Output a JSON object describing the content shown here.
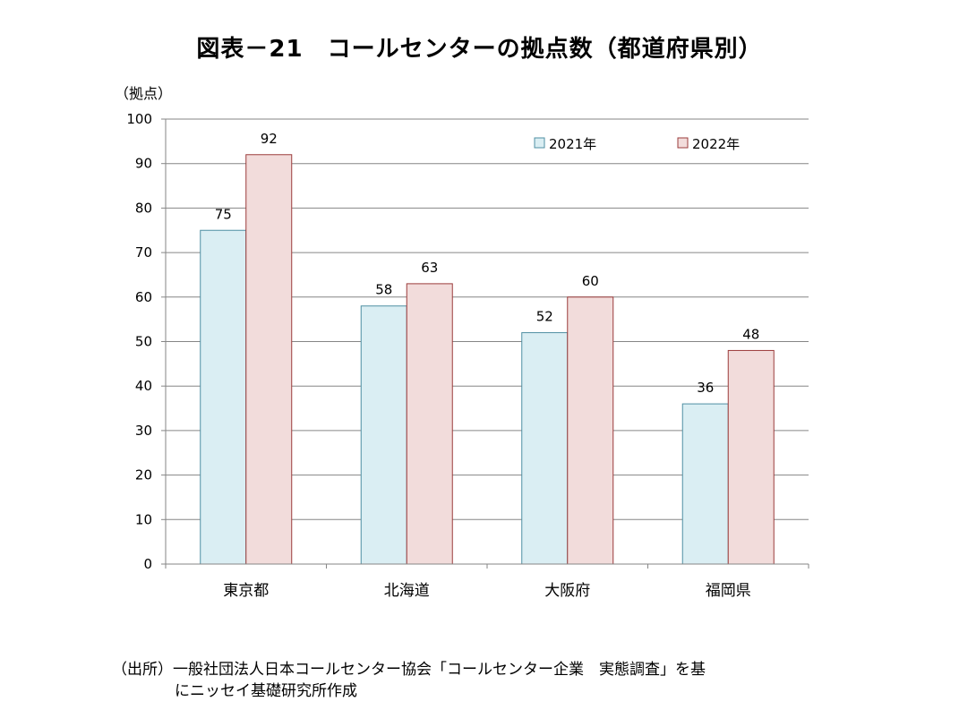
{
  "title": "図表－21　コールセンターの拠点数（都道府県別）",
  "source": {
    "line1": "（出所）一般社団法人日本コールセンター協会「コールセンター企業　実態調査」を基",
    "line2": "にニッセイ基礎研究所作成"
  },
  "colors": {
    "series_2021_fill": "#daeef3",
    "series_2021_stroke": "#4f8fa3",
    "series_2022_fill": "#f2dcdb",
    "series_2022_stroke": "#9b3b3b",
    "gridline": "#868686"
  },
  "chart_data": {
    "type": "bar",
    "title": "図表－21　コールセンターの拠点数（都道府県別）",
    "ylabel": "（拠点）",
    "xlabel": "",
    "ylim": [
      0,
      100
    ],
    "yticks": [
      0,
      10,
      20,
      30,
      40,
      50,
      60,
      70,
      80,
      90,
      100
    ],
    "grid": true,
    "legend_position": "top-right",
    "categories": [
      "東京都",
      "北海道",
      "大阪府",
      "福岡県"
    ],
    "series": [
      {
        "name": "2021年",
        "values": [
          75,
          58,
          52,
          36
        ]
      },
      {
        "name": "2022年",
        "values": [
          92,
          63,
          60,
          48
        ]
      }
    ]
  }
}
